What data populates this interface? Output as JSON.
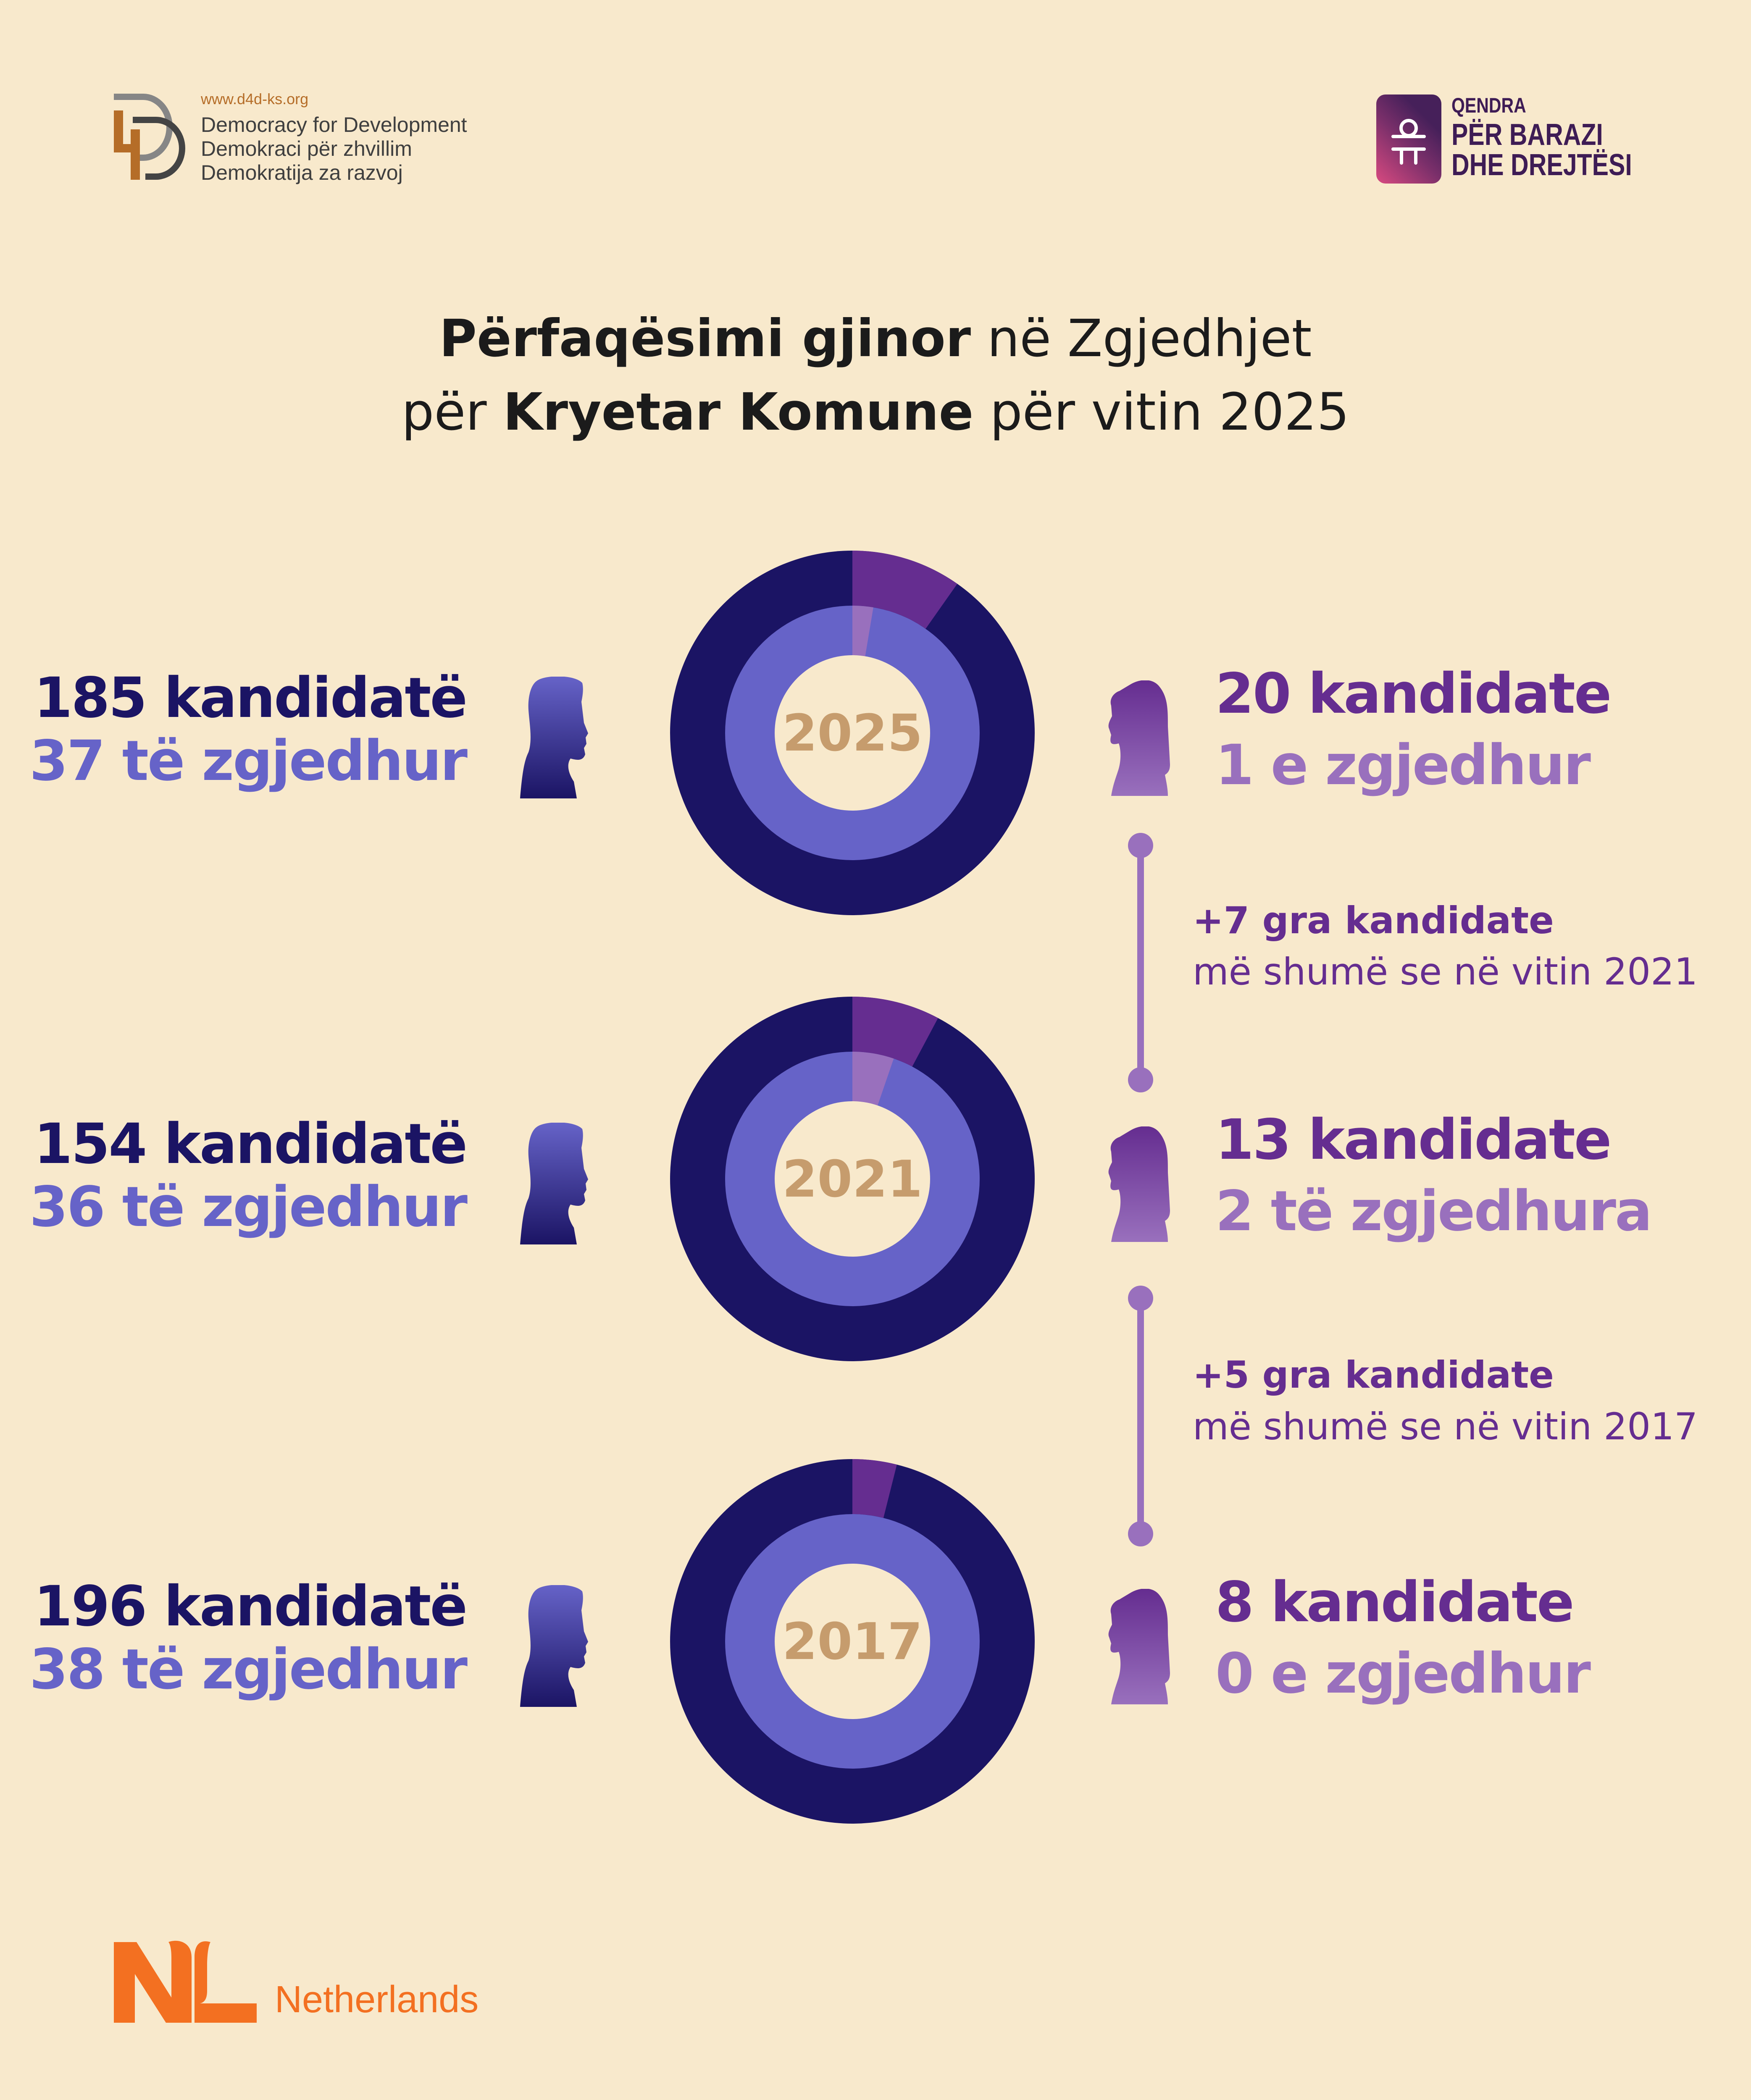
{
  "logos": {
    "d4d": {
      "url": "www.d4d-ks.org",
      "lines": [
        "Democracy for Development",
        "Demokraci për zhvillim",
        "Demokratija za razvoj"
      ]
    },
    "qendra": {
      "lines": [
        "QENDRA",
        "PËR BARAZI",
        "DHE DREJTËSI"
      ]
    },
    "netherlands": {
      "mark": "NL",
      "label": "Netherlands"
    }
  },
  "title": {
    "line1_bold": "Përfaqësimi gjinor",
    "line1_rest": " në Zgjedhjet",
    "line2_pre": "për ",
    "line2_bold": "Kryetar Komune",
    "line2_rest": " për vitin 2025"
  },
  "colors": {
    "men_candidates": "#1b1464",
    "women_candidates": "#652d90",
    "men_elected": "#6663c8",
    "women_elected": "#9970bd",
    "year": "#c69c6d",
    "background": "#f8e9cc"
  },
  "chart_data": {
    "type": "pie",
    "title": "Përfaqësimi gjinor në Zgjedhjet për Kryetar Komune për vitin 2025",
    "years": [
      {
        "year": "2025",
        "men_candidates": 185,
        "men_elected": 37,
        "women_candidates": 20,
        "women_elected": 1,
        "men_label": "185 kandidatë",
        "men_elected_label": "37 të zgjedhur",
        "women_label": "20 kandidate",
        "women_elected_label": "1 e zgjedhur"
      },
      {
        "year": "2021",
        "men_candidates": 154,
        "men_elected": 36,
        "women_candidates": 13,
        "women_elected": 2,
        "men_label": "154 kandidatë",
        "men_elected_label": "36 të zgjedhur",
        "women_label": "13 kandidate",
        "women_elected_label": "2 të zgjedhura"
      },
      {
        "year": "2017",
        "men_candidates": 196,
        "men_elected": 38,
        "women_candidates": 8,
        "women_elected": 0,
        "men_label": "196 kandidatë",
        "men_elected_label": "38 të zgjedhur",
        "women_label": "8 kandidate",
        "women_elected_label": "0 e zgjedhur"
      }
    ],
    "changes": [
      {
        "bold": "+7 gra kandidate",
        "text": "më shumë se në vitin 2021"
      },
      {
        "bold": "+5 gra kandidate",
        "text": "më shumë se në vitin 2017"
      }
    ]
  }
}
